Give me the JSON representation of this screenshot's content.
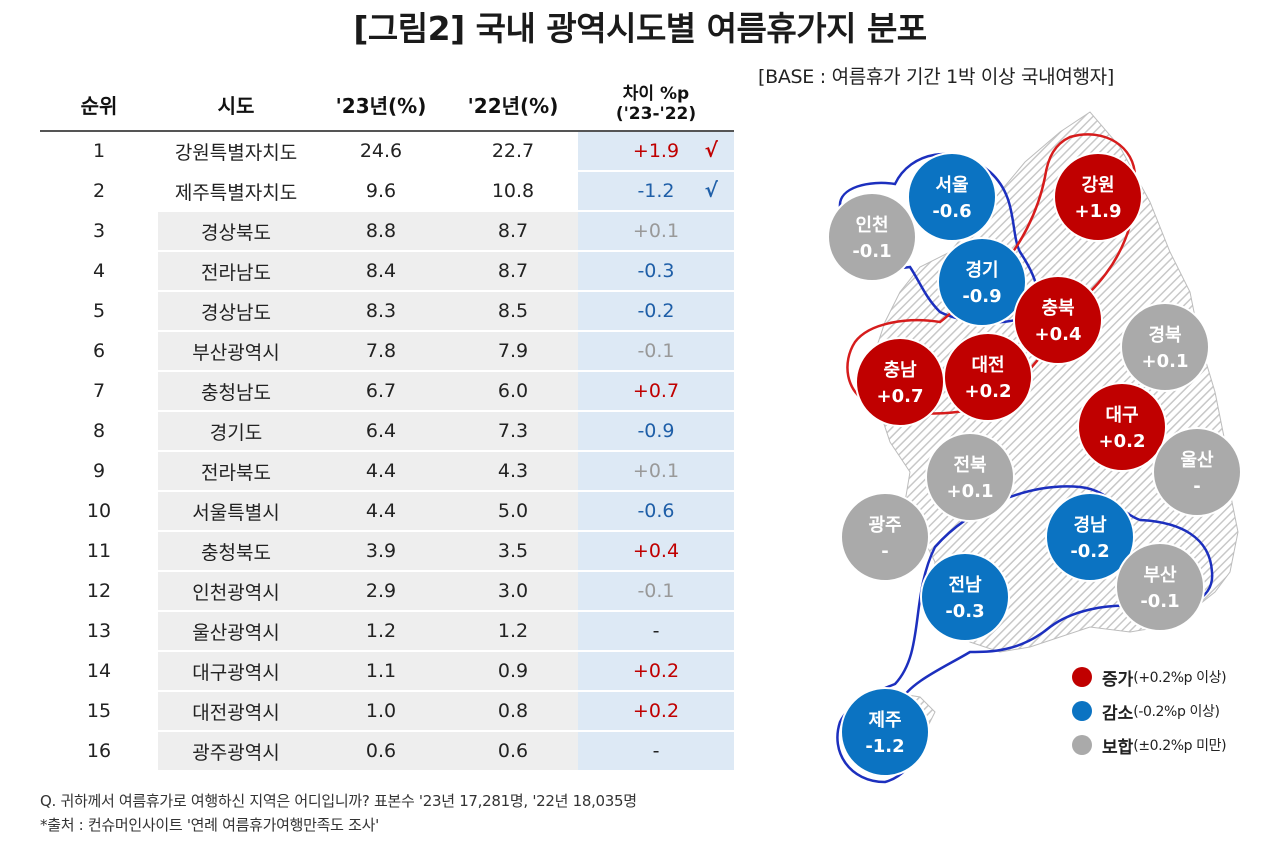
{
  "title": "[그림2] 국내 광역시도별 여름휴가지 분포",
  "base_note": "[BASE : 여름휴가 기간 1박 이상 국내여행자]",
  "colors": {
    "increase": "#c00000",
    "decrease": "#0b73c2",
    "neutral": "#aaaaaa"
  },
  "chart_data": {
    "type": "table",
    "headers": {
      "rank": "순위",
      "sido": "시도",
      "y23": "'23년(%)",
      "y22": "'22년(%)",
      "diff": "차이 %p",
      "diff_sub": "('23-'22)"
    },
    "rows": [
      {
        "rank": "1",
        "sido": "강원특별자치도",
        "y23": "24.6",
        "y22": "22.7",
        "diff": "+1.9",
        "check": "√",
        "dir": "pos"
      },
      {
        "rank": "2",
        "sido": "제주특별자치도",
        "y23": "9.6",
        "y22": "10.8",
        "diff": "-1.2",
        "check": "√",
        "dir": "neg"
      },
      {
        "rank": "3",
        "sido": "경상북도",
        "y23": "8.8",
        "y22": "8.7",
        "diff": "+0.1",
        "check": "",
        "dir": "neu"
      },
      {
        "rank": "4",
        "sido": "전라남도",
        "y23": "8.4",
        "y22": "8.7",
        "diff": "-0.3",
        "check": "",
        "dir": "neg"
      },
      {
        "rank": "5",
        "sido": "경상남도",
        "y23": "8.3",
        "y22": "8.5",
        "diff": "-0.2",
        "check": "",
        "dir": "neg"
      },
      {
        "rank": "6",
        "sido": "부산광역시",
        "y23": "7.8",
        "y22": "7.9",
        "diff": "-0.1",
        "check": "",
        "dir": "neu"
      },
      {
        "rank": "7",
        "sido": "충청남도",
        "y23": "6.7",
        "y22": "6.0",
        "diff": "+0.7",
        "check": "",
        "dir": "pos"
      },
      {
        "rank": "8",
        "sido": "경기도",
        "y23": "6.4",
        "y22": "7.3",
        "diff": "-0.9",
        "check": "",
        "dir": "neg"
      },
      {
        "rank": "9",
        "sido": "전라북도",
        "y23": "4.4",
        "y22": "4.3",
        "diff": "+0.1",
        "check": "",
        "dir": "neu"
      },
      {
        "rank": "10",
        "sido": "서울특별시",
        "y23": "4.4",
        "y22": "5.0",
        "diff": "-0.6",
        "check": "",
        "dir": "neg"
      },
      {
        "rank": "11",
        "sido": "충청북도",
        "y23": "3.9",
        "y22": "3.5",
        "diff": "+0.4",
        "check": "",
        "dir": "pos"
      },
      {
        "rank": "12",
        "sido": "인천광역시",
        "y23": "2.9",
        "y22": "3.0",
        "diff": "-0.1",
        "check": "",
        "dir": "neu"
      },
      {
        "rank": "13",
        "sido": "울산광역시",
        "y23": "1.2",
        "y22": "1.2",
        "diff": "-",
        "check": "",
        "dir": "neu_dark"
      },
      {
        "rank": "14",
        "sido": "대구광역시",
        "y23": "1.1",
        "y22": "0.9",
        "diff": "+0.2",
        "check": "",
        "dir": "pos"
      },
      {
        "rank": "15",
        "sido": "대전광역시",
        "y23": "1.0",
        "y22": "0.8",
        "diff": "+0.2",
        "check": "",
        "dir": "pos"
      },
      {
        "rank": "16",
        "sido": "광주광역시",
        "y23": "0.6",
        "y22": "0.6",
        "diff": "-",
        "check": "",
        "dir": "neu_dark"
      }
    ]
  },
  "map": {
    "bubbles": [
      {
        "name": "서울",
        "value": "-0.6",
        "type": "decrease"
      },
      {
        "name": "인천",
        "value": "-0.1",
        "type": "neutral"
      },
      {
        "name": "경기",
        "value": "-0.9",
        "type": "decrease"
      },
      {
        "name": "강원",
        "value": "+1.9",
        "type": "increase"
      },
      {
        "name": "충북",
        "value": "+0.4",
        "type": "increase"
      },
      {
        "name": "경북",
        "value": "+0.1",
        "type": "neutral"
      },
      {
        "name": "충남",
        "value": "+0.7",
        "type": "increase"
      },
      {
        "name": "대전",
        "value": "+0.2",
        "type": "increase"
      },
      {
        "name": "대구",
        "value": "+0.2",
        "type": "increase"
      },
      {
        "name": "전북",
        "value": "+0.1",
        "type": "neutral"
      },
      {
        "name": "울산",
        "value": "-",
        "type": "neutral"
      },
      {
        "name": "광주",
        "value": "-",
        "type": "neutral"
      },
      {
        "name": "경남",
        "value": "-0.2",
        "type": "decrease"
      },
      {
        "name": "전남",
        "value": "-0.3",
        "type": "decrease"
      },
      {
        "name": "부산",
        "value": "-0.1",
        "type": "neutral"
      },
      {
        "name": "제주",
        "value": "-1.2",
        "type": "decrease"
      }
    ],
    "legend": [
      {
        "label": "증가",
        "detail": "(+0.2%p 이상)",
        "type": "increase"
      },
      {
        "label": "감소",
        "detail": "(-0.2%p 이상)",
        "type": "decrease"
      },
      {
        "label": "보합",
        "detail": "(±0.2%p 미만)",
        "type": "neutral"
      }
    ]
  },
  "footnotes": {
    "question": "Q. 귀하께서 여름휴가로 여행하신 지역은 어디입니까? 표본수 '23년 17,281명,  '22년 18,035명",
    "source": "*출처 : 컨슈머인사이트 '연례 여름휴가여행만족도 조사'"
  }
}
